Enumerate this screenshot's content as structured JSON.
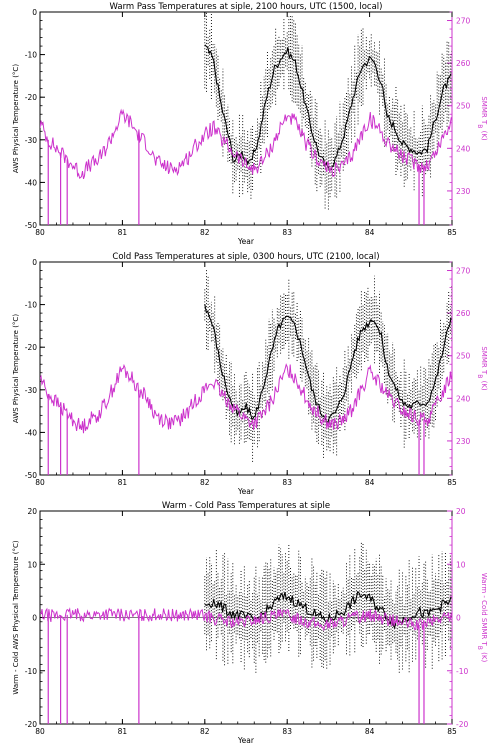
{
  "colors": {
    "aws": "#000000",
    "smmr": "#cc33cc",
    "frame": "#000000",
    "background": "#ffffff"
  },
  "chart_data": [
    {
      "id": "warm",
      "type": "line",
      "title": "Warm Pass Temperatures at siple, 2100 hours, UTC (1500, local)",
      "xlabel": "Year",
      "ylabel_left": "AWS Physical Temperature (°C)",
      "ylabel_right": "SMMR T_B (K)",
      "xlim": [
        80,
        85
      ],
      "ylim_left": [
        -50,
        0
      ],
      "ylim_right": [
        222,
        272
      ],
      "x_ticks": [
        "80",
        "81",
        "82",
        "83",
        "84",
        "85"
      ],
      "y_ticks_left": [
        "-50",
        "-40",
        "-30",
        "-20",
        "-10",
        "0"
      ],
      "y_ticks_right": [
        "230",
        "240",
        "250",
        "260",
        "270"
      ],
      "series": [
        {
          "name": "AWS",
          "axis": "left",
          "points": [
            [
              82.0,
              -8
            ],
            [
              82.1,
              -11
            ],
            [
              82.2,
              -22
            ],
            [
              82.3,
              -30
            ],
            [
              82.35,
              -35
            ],
            [
              82.45,
              -33
            ],
            [
              82.55,
              -36
            ],
            [
              82.65,
              -30
            ],
            [
              82.75,
              -20
            ],
            [
              82.85,
              -13
            ],
            [
              82.95,
              -10
            ],
            [
              83.0,
              -9
            ],
            [
              83.1,
              -12
            ],
            [
              83.2,
              -20
            ],
            [
              83.3,
              -28
            ],
            [
              83.4,
              -34
            ],
            [
              83.5,
              -37
            ],
            [
              83.6,
              -34
            ],
            [
              83.7,
              -28
            ],
            [
              83.8,
              -20
            ],
            [
              83.9,
              -13
            ],
            [
              84.0,
              -11
            ],
            [
              84.05,
              -11.5
            ],
            [
              84.15,
              -17
            ],
            [
              84.2,
              -24
            ],
            [
              84.3,
              -27
            ],
            [
              84.4,
              -31
            ],
            [
              84.5,
              -32
            ],
            [
              84.6,
              -33
            ],
            [
              84.7,
              -32
            ],
            [
              84.8,
              -25
            ],
            [
              84.9,
              -18
            ],
            [
              85.0,
              -15
            ]
          ]
        },
        {
          "name": "SMMR",
          "axis": "right",
          "points": [
            [
              80.0,
              246
            ],
            [
              80.1,
              242
            ],
            [
              80.2,
              240
            ],
            [
              80.3,
              238
            ],
            [
              80.4,
              236
            ],
            [
              80.5,
              234
            ],
            [
              80.6,
              236
            ],
            [
              80.7,
              237
            ],
            [
              80.8,
              240
            ],
            [
              80.9,
              244
            ],
            [
              81.0,
              248
            ],
            [
              81.1,
              246
            ],
            [
              81.2,
              243
            ],
            [
              81.3,
              241
            ],
            [
              81.4,
              237
            ],
            [
              81.5,
              236
            ],
            [
              81.6,
              235
            ],
            [
              81.7,
              236
            ],
            [
              81.8,
              238
            ],
            [
              81.9,
              241
            ],
            [
              82.0,
              243
            ],
            [
              82.1,
              245
            ],
            [
              82.2,
              242
            ],
            [
              82.3,
              240
            ],
            [
              82.4,
              238
            ],
            [
              82.5,
              236
            ],
            [
              82.6,
              235
            ],
            [
              82.7,
              237
            ],
            [
              82.8,
              240
            ],
            [
              82.9,
              244
            ],
            [
              83.0,
              248
            ],
            [
              83.1,
              246
            ],
            [
              83.2,
              242
            ],
            [
              83.3,
              239
            ],
            [
              83.4,
              237
            ],
            [
              83.5,
              235
            ],
            [
              83.6,
              235
            ],
            [
              83.7,
              236
            ],
            [
              83.8,
              239
            ],
            [
              83.9,
              243
            ],
            [
              84.0,
              247
            ],
            [
              84.1,
              245
            ],
            [
              84.2,
              242
            ],
            [
              84.3,
              240
            ],
            [
              84.4,
              238
            ],
            [
              84.5,
              237
            ],
            [
              84.6,
              236
            ],
            [
              84.7,
              236
            ],
            [
              84.8,
              239
            ],
            [
              84.9,
              243
            ],
            [
              85.0,
              247
            ]
          ],
          "dropouts": [
            80.1,
            80.25,
            80.33,
            81.2,
            84.6,
            84.66
          ]
        }
      ]
    },
    {
      "id": "cold",
      "type": "line",
      "title": "Cold Pass Temperatures at siple, 0300 hours, UTC (2100, local)",
      "xlabel": "Year",
      "ylabel_left": "AWS Physical Temperature (°C)",
      "ylabel_right": "SMMR T_B (K)",
      "xlim": [
        80,
        85
      ],
      "ylim_left": [
        -50,
        0
      ],
      "ylim_right": [
        222,
        272
      ],
      "x_ticks": [
        "80",
        "81",
        "82",
        "83",
        "84",
        "85"
      ],
      "y_ticks_left": [
        "-50",
        "-40",
        "-30",
        "-20",
        "-10",
        "0"
      ],
      "y_ticks_right": [
        "230",
        "240",
        "250",
        "260",
        "270"
      ],
      "series": [
        {
          "name": "AWS",
          "axis": "left",
          "points": [
            [
              82.0,
              -10
            ],
            [
              82.1,
              -15
            ],
            [
              82.2,
              -25
            ],
            [
              82.3,
              -32
            ],
            [
              82.4,
              -36
            ],
            [
              82.5,
              -34
            ],
            [
              82.6,
              -37
            ],
            [
              82.7,
              -30
            ],
            [
              82.8,
              -22
            ],
            [
              82.9,
              -15
            ],
            [
              83.0,
              -13
            ],
            [
              83.1,
              -15
            ],
            [
              83.2,
              -22
            ],
            [
              83.3,
              -30
            ],
            [
              83.4,
              -35
            ],
            [
              83.5,
              -37
            ],
            [
              83.6,
              -35
            ],
            [
              83.7,
              -30
            ],
            [
              83.8,
              -22
            ],
            [
              83.9,
              -16
            ],
            [
              84.0,
              -14
            ],
            [
              84.05,
              -13
            ],
            [
              84.15,
              -18
            ],
            [
              84.2,
              -24
            ],
            [
              84.3,
              -29
            ],
            [
              84.4,
              -33
            ],
            [
              84.5,
              -34
            ],
            [
              84.6,
              -33
            ],
            [
              84.7,
              -33
            ],
            [
              84.8,
              -28
            ],
            [
              84.9,
              -20
            ],
            [
              85.0,
              -12
            ]
          ]
        },
        {
          "name": "SMMR",
          "axis": "right",
          "points": [
            [
              80.0,
              245
            ],
            [
              80.1,
              241
            ],
            [
              80.2,
              239
            ],
            [
              80.3,
              237
            ],
            [
              80.4,
              235
            ],
            [
              80.5,
              233
            ],
            [
              80.6,
              235
            ],
            [
              80.7,
              236
            ],
            [
              80.8,
              239
            ],
            [
              80.9,
              243
            ],
            [
              81.0,
              247
            ],
            [
              81.1,
              245
            ],
            [
              81.2,
              242
            ],
            [
              81.3,
              240
            ],
            [
              81.4,
              236
            ],
            [
              81.5,
              235
            ],
            [
              81.6,
              234
            ],
            [
              81.7,
              235
            ],
            [
              81.8,
              237
            ],
            [
              81.9,
              240
            ],
            [
              82.0,
              242
            ],
            [
              82.1,
              244
            ],
            [
              82.2,
              241
            ],
            [
              82.3,
              239
            ],
            [
              82.4,
              237
            ],
            [
              82.5,
              235
            ],
            [
              82.6,
              234
            ],
            [
              82.7,
              236
            ],
            [
              82.8,
              239
            ],
            [
              82.9,
              243
            ],
            [
              83.0,
              247
            ],
            [
              83.1,
              245
            ],
            [
              83.2,
              241
            ],
            [
              83.3,
              238
            ],
            [
              83.4,
              236
            ],
            [
              83.5,
              234
            ],
            [
              83.6,
              234
            ],
            [
              83.7,
              235
            ],
            [
              83.8,
              238
            ],
            [
              83.9,
              242
            ],
            [
              84.0,
              246
            ],
            [
              84.1,
              244
            ],
            [
              84.2,
              241
            ],
            [
              84.3,
              239
            ],
            [
              84.4,
              237
            ],
            [
              84.5,
              236
            ],
            [
              84.6,
              235
            ],
            [
              84.7,
              235
            ],
            [
              84.8,
              238
            ],
            [
              84.9,
              242
            ],
            [
              85.0,
              246
            ]
          ],
          "dropouts": [
            80.1,
            80.25,
            80.33,
            81.2,
            84.6,
            84.66
          ]
        }
      ]
    },
    {
      "id": "diff",
      "type": "line",
      "title": "Warm - Cold Pass Temperatures at siple",
      "xlabel": "Year",
      "ylabel_left": "Warm - Cold AWS Physical Temperature (°C)",
      "ylabel_right": "Warm - Cold SMMR T_B (K)",
      "xlim": [
        80,
        85
      ],
      "ylim_left": [
        -20,
        20
      ],
      "ylim_right": [
        -20,
        20
      ],
      "x_ticks": [
        "80",
        "81",
        "82",
        "83",
        "84",
        "85"
      ],
      "y_ticks_left": [
        "-20",
        "-10",
        "0",
        "10",
        "20"
      ],
      "y_ticks_right": [
        "-20",
        "-10",
        "0",
        "10",
        "20"
      ],
      "series": [
        {
          "name": "AWS",
          "axis": "left",
          "points": [
            [
              82.0,
              2.5
            ],
            [
              82.1,
              3
            ],
            [
              82.2,
              2
            ],
            [
              82.3,
              1
            ],
            [
              82.4,
              0.5
            ],
            [
              82.5,
              0
            ],
            [
              82.6,
              -0.5
            ],
            [
              82.7,
              0.5
            ],
            [
              82.8,
              2
            ],
            [
              82.9,
              3.5
            ],
            [
              83.0,
              4
            ],
            [
              83.1,
              3
            ],
            [
              83.2,
              2
            ],
            [
              83.3,
              1
            ],
            [
              83.4,
              0
            ],
            [
              83.5,
              -0.5
            ],
            [
              83.6,
              0.5
            ],
            [
              83.7,
              1.5
            ],
            [
              83.8,
              3
            ],
            [
              83.9,
              4.5
            ],
            [
              84.0,
              3.5
            ],
            [
              84.1,
              2
            ],
            [
              84.2,
              0.5
            ],
            [
              84.3,
              -1
            ],
            [
              84.4,
              -0.5
            ],
            [
              84.5,
              0.5
            ],
            [
              84.6,
              1
            ],
            [
              84.7,
              0.5
            ],
            [
              84.8,
              1.5
            ],
            [
              84.9,
              2.5
            ],
            [
              85.0,
              3
            ]
          ]
        },
        {
          "name": "SMMR",
          "axis": "right",
          "points": [
            [
              80.0,
              0.5
            ],
            [
              80.2,
              0.3
            ],
            [
              80.4,
              0.6
            ],
            [
              80.6,
              0.4
            ],
            [
              80.8,
              0.7
            ],
            [
              81.0,
              0.5
            ],
            [
              81.2,
              0.3
            ],
            [
              81.4,
              0.6
            ],
            [
              81.6,
              0.4
            ],
            [
              81.8,
              0.5
            ],
            [
              82.0,
              0.3
            ],
            [
              82.2,
              -0.5
            ],
            [
              82.4,
              -1
            ],
            [
              82.6,
              -0.5
            ],
            [
              82.8,
              0.2
            ],
            [
              83.0,
              0.5
            ],
            [
              83.2,
              -0.5
            ],
            [
              83.4,
              -1.5
            ],
            [
              83.6,
              -1
            ],
            [
              83.8,
              0
            ],
            [
              84.0,
              0.5
            ],
            [
              84.2,
              -0.3
            ],
            [
              84.4,
              -1
            ],
            [
              84.6,
              -1.5
            ],
            [
              84.8,
              -0.5
            ],
            [
              85.0,
              0.5
            ]
          ],
          "dropouts": [
            80.1,
            80.25,
            80.33,
            81.2,
            84.6,
            84.66
          ]
        }
      ]
    }
  ]
}
